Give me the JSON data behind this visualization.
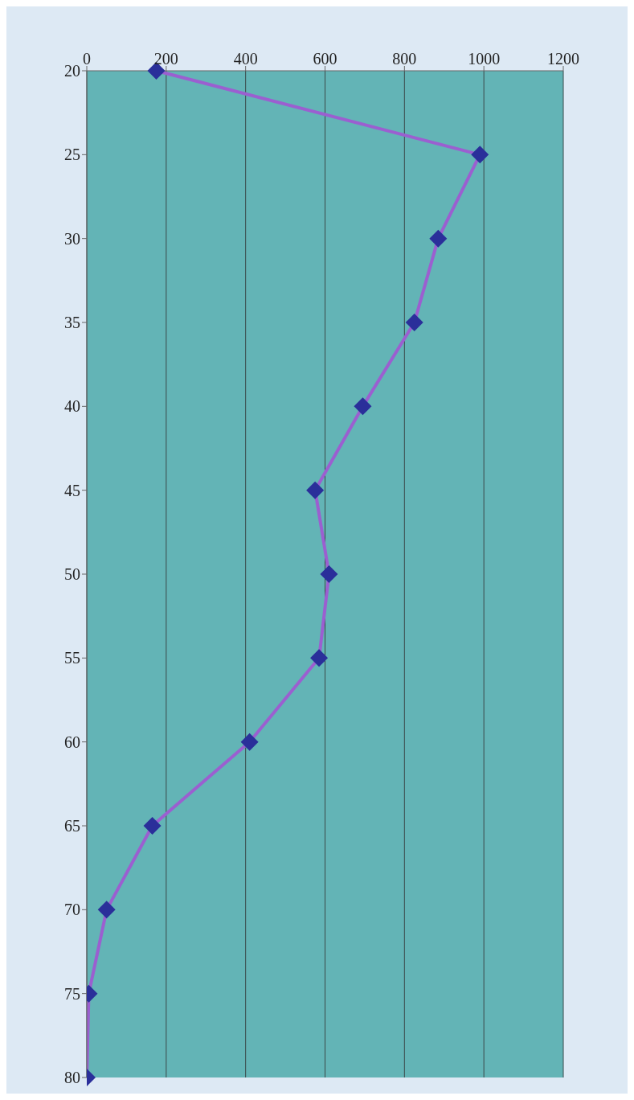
{
  "chart_data": {
    "type": "line",
    "orientation": "horizontal",
    "categories": [
      "20",
      "25",
      "30",
      "35",
      "40",
      "45",
      "50",
      "55",
      "60",
      "65",
      "70",
      "75",
      "80"
    ],
    "series": [
      {
        "color": "#9b5fd0",
        "values": [
          175,
          990,
          885,
          825,
          695,
          575,
          610,
          585,
          410,
          165,
          50,
          5,
          0
        ]
      }
    ],
    "colors": [
      "#2a2f9a",
      "#2a2f9a",
      "#2a2f9a",
      "#2a2f9a",
      "#2a2f9a",
      "#2a2f9a",
      "#2a2f9a",
      "#2a2f9a",
      "#2a2f9a",
      "#2a2f9a",
      "#2a2f9a",
      "#2a2f9a",
      "#2a2f9a"
    ],
    "xlim": [
      0,
      1200
    ],
    "xticks": [
      0,
      200,
      400,
      600,
      800,
      1000,
      1200
    ],
    "grid": "x",
    "marker": "diamond",
    "line_style": "solid",
    "legend": false
  }
}
